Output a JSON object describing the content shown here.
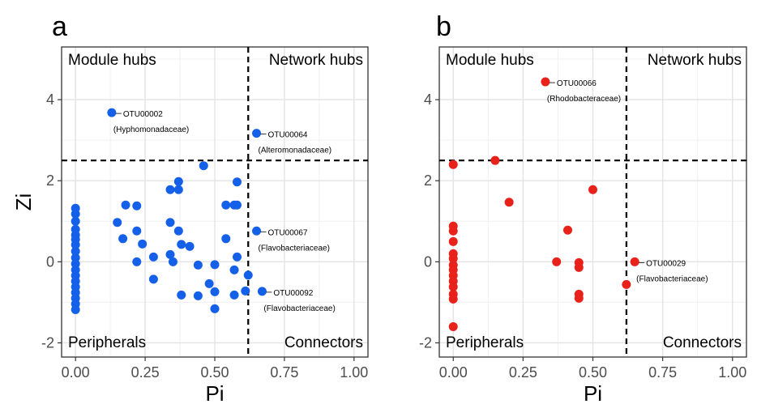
{
  "chart_data": [
    {
      "type": "scatter",
      "panel_label": "a",
      "xlabel": "Pi",
      "ylabel": "Zi",
      "xlim": [
        -0.05,
        1.05
      ],
      "ylim": [
        -2.35,
        5.3
      ],
      "xticks": [
        "0.00",
        "0.25",
        "0.50",
        "0.75",
        "1.00"
      ],
      "yticks": [
        "-2",
        "0",
        "2",
        "4"
      ],
      "grid": true,
      "point_color": "#1560e8",
      "thresholds": {
        "x": 0.62,
        "y": 2.5
      },
      "quadrant_labels": {
        "top_left": "Module hubs",
        "top_right": "Network hubs",
        "bottom_left": "Peripherals",
        "bottom_right": "Connectors"
      },
      "points": [
        {
          "x": 0.0,
          "y": 1.32
        },
        {
          "x": 0.0,
          "y": 1.18
        },
        {
          "x": 0.0,
          "y": 1.0
        },
        {
          "x": 0.0,
          "y": 0.8
        },
        {
          "x": 0.0,
          "y": 0.66
        },
        {
          "x": 0.0,
          "y": 0.55
        },
        {
          "x": 0.0,
          "y": 0.42
        },
        {
          "x": 0.0,
          "y": 0.26
        },
        {
          "x": 0.0,
          "y": 0.1
        },
        {
          "x": 0.0,
          "y": -0.05
        },
        {
          "x": 0.0,
          "y": -0.2
        },
        {
          "x": 0.0,
          "y": -0.34
        },
        {
          "x": 0.0,
          "y": -0.48
        },
        {
          "x": 0.0,
          "y": -0.62
        },
        {
          "x": 0.0,
          "y": -0.76
        },
        {
          "x": 0.0,
          "y": -0.9
        },
        {
          "x": 0.0,
          "y": -1.04
        },
        {
          "x": 0.0,
          "y": -1.18
        },
        {
          "x": 0.13,
          "y": 3.68
        },
        {
          "x": 0.15,
          "y": 0.97
        },
        {
          "x": 0.17,
          "y": 0.57
        },
        {
          "x": 0.18,
          "y": 1.4
        },
        {
          "x": 0.22,
          "y": 1.38
        },
        {
          "x": 0.22,
          "y": 0.76
        },
        {
          "x": 0.22,
          "y": 0.0
        },
        {
          "x": 0.24,
          "y": 0.44
        },
        {
          "x": 0.28,
          "y": 0.12
        },
        {
          "x": 0.28,
          "y": -0.43
        },
        {
          "x": 0.34,
          "y": 1.78
        },
        {
          "x": 0.34,
          "y": 0.97
        },
        {
          "x": 0.34,
          "y": 0.18
        },
        {
          "x": 0.35,
          "y": 0.0
        },
        {
          "x": 0.37,
          "y": 1.98
        },
        {
          "x": 0.37,
          "y": 1.78
        },
        {
          "x": 0.37,
          "y": 0.76
        },
        {
          "x": 0.38,
          "y": 0.43
        },
        {
          "x": 0.38,
          "y": -0.82
        },
        {
          "x": 0.41,
          "y": 0.38
        },
        {
          "x": 0.44,
          "y": -0.08
        },
        {
          "x": 0.44,
          "y": -0.84
        },
        {
          "x": 0.46,
          "y": 2.37
        },
        {
          "x": 0.48,
          "y": -0.54
        },
        {
          "x": 0.5,
          "y": -0.07
        },
        {
          "x": 0.5,
          "y": -0.74
        },
        {
          "x": 0.5,
          "y": -1.16
        },
        {
          "x": 0.54,
          "y": 1.4
        },
        {
          "x": 0.54,
          "y": 0.57
        },
        {
          "x": 0.57,
          "y": 1.4
        },
        {
          "x": 0.57,
          "y": -0.2
        },
        {
          "x": 0.57,
          "y": -0.82
        },
        {
          "x": 0.58,
          "y": 1.97
        },
        {
          "x": 0.58,
          "y": 1.4
        },
        {
          "x": 0.58,
          "y": 0.12
        },
        {
          "x": 0.61,
          "y": -0.72
        },
        {
          "x": 0.62,
          "y": -0.33
        },
        {
          "x": 0.65,
          "y": 3.17
        },
        {
          "x": 0.65,
          "y": 0.76
        },
        {
          "x": 0.67,
          "y": -0.73
        }
      ],
      "annotations": [
        {
          "point": {
            "x": 0.13,
            "y": 3.68
          },
          "lines": [
            "OTU00002",
            "(Hyphomonadaceae)"
          ]
        },
        {
          "point": {
            "x": 0.65,
            "y": 3.17
          },
          "lines": [
            "OTU00064",
            "(Alteromonadaceae)"
          ]
        },
        {
          "point": {
            "x": 0.65,
            "y": 0.76
          },
          "lines": [
            "OTU00067",
            "(Flavobacteriaceae)"
          ]
        },
        {
          "point": {
            "x": 0.67,
            "y": -0.73
          },
          "lines": [
            "OTU00092",
            "(Flavobacteriaceae)"
          ]
        }
      ]
    },
    {
      "type": "scatter",
      "panel_label": "b",
      "xlabel": "Pi",
      "ylabel": "",
      "xlim": [
        -0.05,
        1.05
      ],
      "ylim": [
        -2.35,
        5.3
      ],
      "xticks": [
        "0.00",
        "0.25",
        "0.50",
        "0.75",
        "1.00"
      ],
      "yticks": [
        "-2",
        "0",
        "2",
        "4"
      ],
      "grid": true,
      "point_color": "#e8211a",
      "thresholds": {
        "x": 0.62,
        "y": 2.5
      },
      "quadrant_labels": {
        "top_left": "Module hubs",
        "top_right": "Network hubs",
        "bottom_left": "Peripherals",
        "bottom_right": "Connectors"
      },
      "points": [
        {
          "x": 0.0,
          "y": 2.4
        },
        {
          "x": 0.0,
          "y": 0.88
        },
        {
          "x": 0.0,
          "y": 0.76
        },
        {
          "x": 0.0,
          "y": 0.5
        },
        {
          "x": 0.0,
          "y": 0.2
        },
        {
          "x": 0.0,
          "y": 0.08
        },
        {
          "x": 0.0,
          "y": -0.08
        },
        {
          "x": 0.0,
          "y": -0.2
        },
        {
          "x": 0.0,
          "y": -0.34
        },
        {
          "x": 0.0,
          "y": -0.48
        },
        {
          "x": 0.0,
          "y": -0.62
        },
        {
          "x": 0.0,
          "y": -0.8
        },
        {
          "x": 0.0,
          "y": -0.92
        },
        {
          "x": 0.0,
          "y": -1.6
        },
        {
          "x": 0.15,
          "y": 2.5
        },
        {
          "x": 0.2,
          "y": 1.47
        },
        {
          "x": 0.33,
          "y": 4.44
        },
        {
          "x": 0.37,
          "y": 0.0
        },
        {
          "x": 0.41,
          "y": 0.78
        },
        {
          "x": 0.45,
          "y": -0.02
        },
        {
          "x": 0.45,
          "y": -0.14
        },
        {
          "x": 0.45,
          "y": -0.8
        },
        {
          "x": 0.45,
          "y": -0.9
        },
        {
          "x": 0.5,
          "y": 1.78
        },
        {
          "x": 0.62,
          "y": -0.56
        },
        {
          "x": 0.65,
          "y": 0.0
        }
      ],
      "annotations": [
        {
          "point": {
            "x": 0.33,
            "y": 4.44
          },
          "lines": [
            "OTU00066",
            "(Rhodobacteraceae)"
          ]
        },
        {
          "point": {
            "x": 0.65,
            "y": 0.0
          },
          "lines": [
            "OTU00029",
            "(Flavobacteriaceae)"
          ]
        }
      ]
    }
  ]
}
